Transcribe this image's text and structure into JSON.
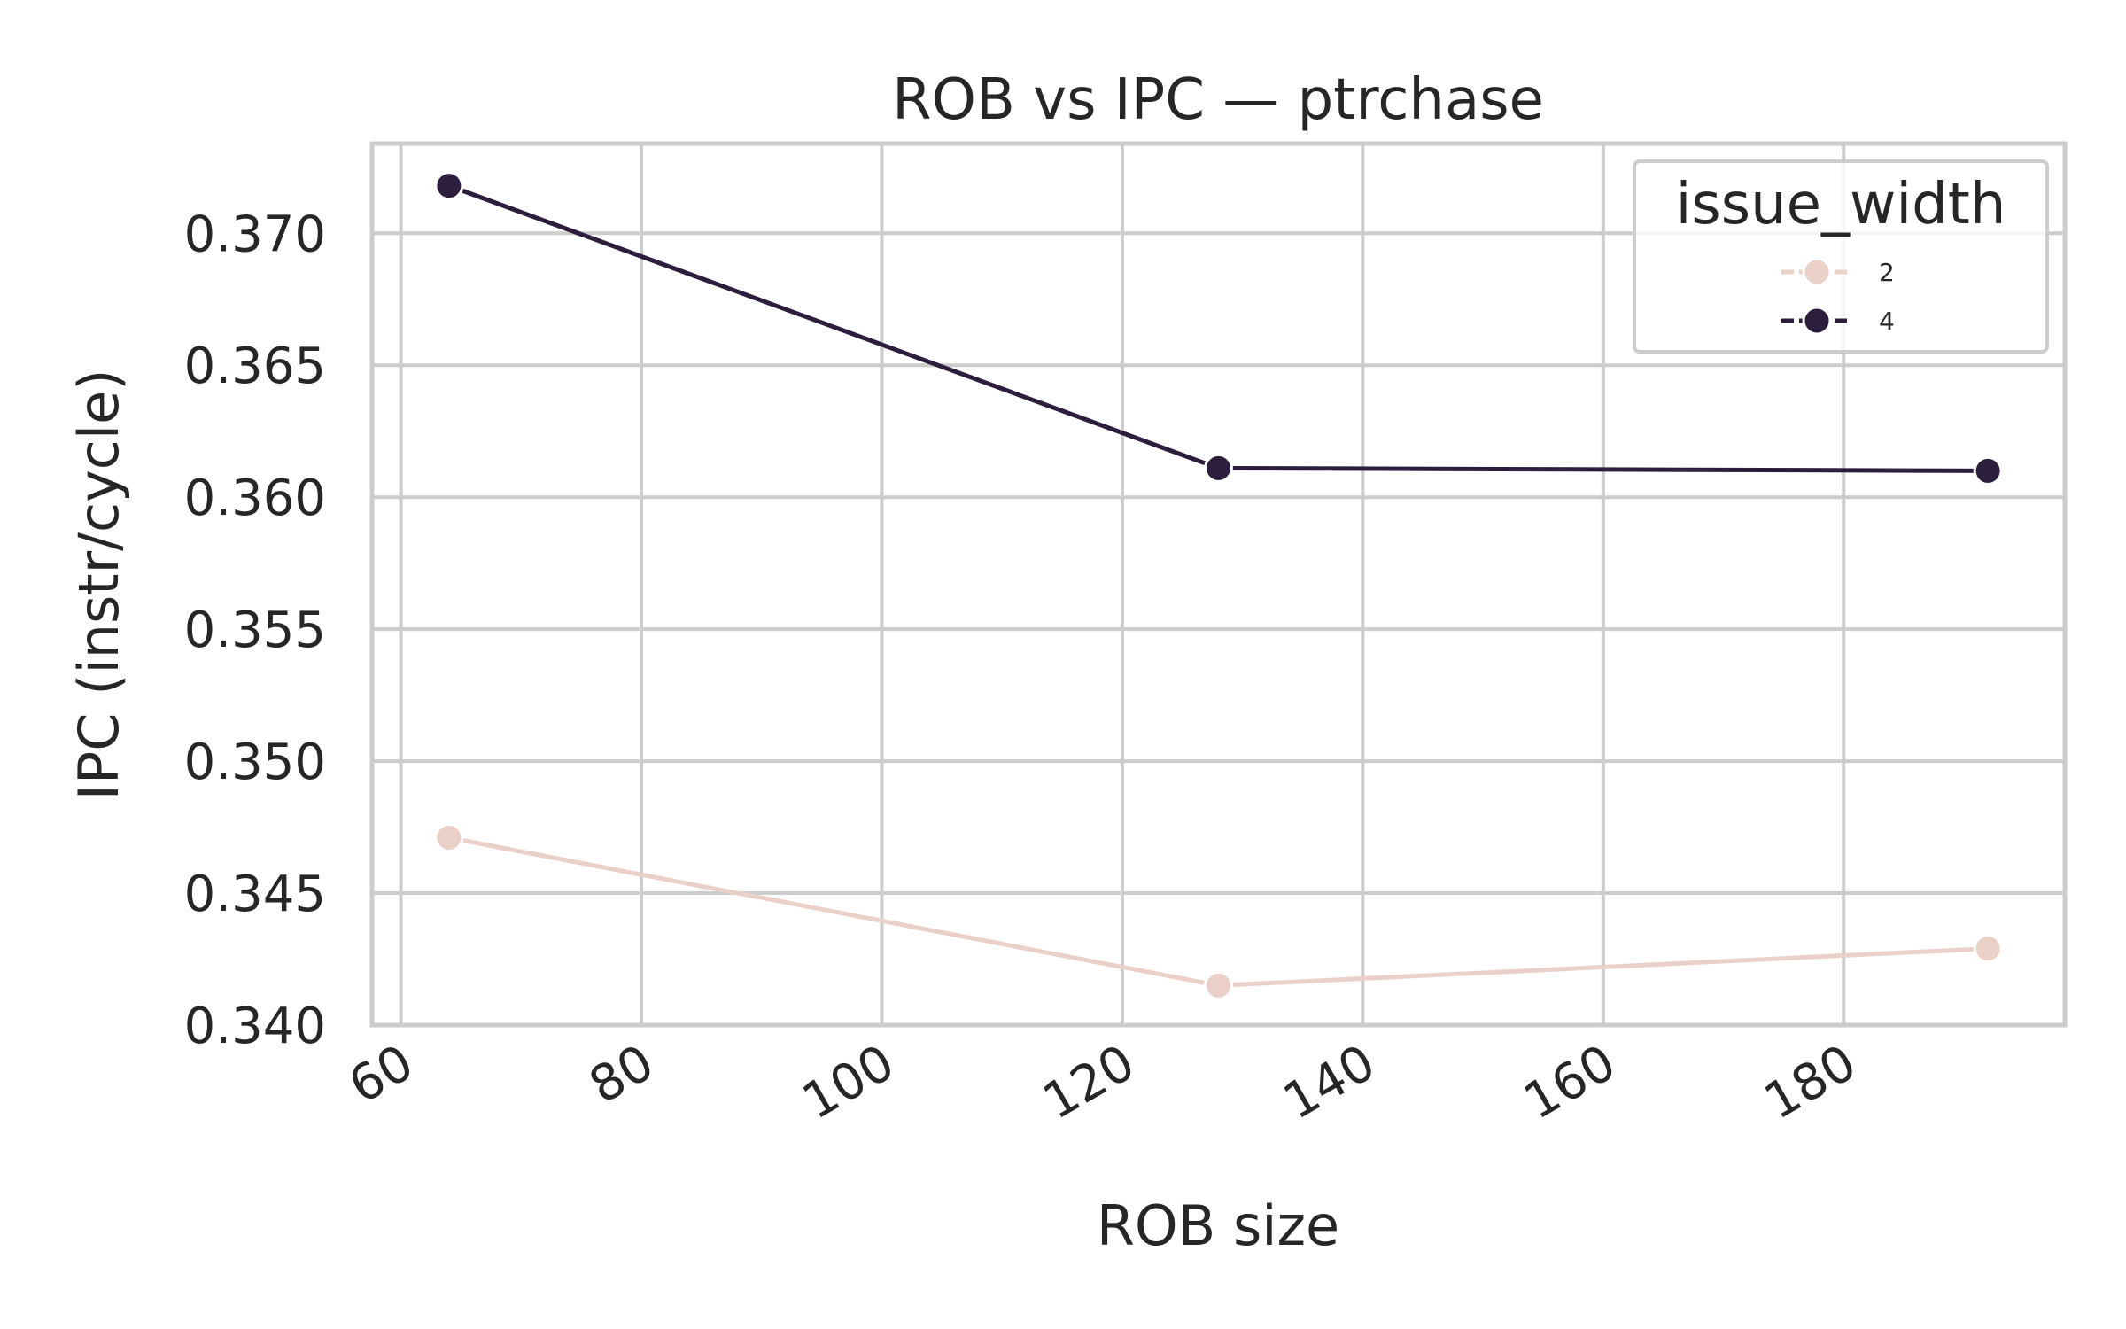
{
  "chart_data": {
    "type": "line",
    "title": "ROB vs IPC — ptrchase",
    "xlabel": "ROB size",
    "ylabel": "IPC (instr/cycle)",
    "xlim": [
      57.6,
      198.4
    ],
    "ylim": [
      0.34,
      0.3734
    ],
    "xticks": [
      60,
      80,
      100,
      120,
      140,
      160,
      180
    ],
    "yticks": [
      0.34,
      0.345,
      0.35,
      0.355,
      0.36,
      0.365,
      0.37
    ],
    "ytick_labels": [
      "0.340",
      "0.345",
      "0.350",
      "0.355",
      "0.360",
      "0.365",
      "0.370"
    ],
    "grid": true,
    "legend": {
      "title": "issue_width",
      "position": "top-right"
    },
    "x": [
      64,
      128,
      192
    ],
    "series": [
      {
        "name": "2",
        "color": "#ebd0c8",
        "values": [
          0.3471,
          0.3415,
          0.3429
        ]
      },
      {
        "name": "4",
        "color": "#2d1e3e",
        "values": [
          0.3718,
          0.3611,
          0.361
        ]
      }
    ]
  }
}
